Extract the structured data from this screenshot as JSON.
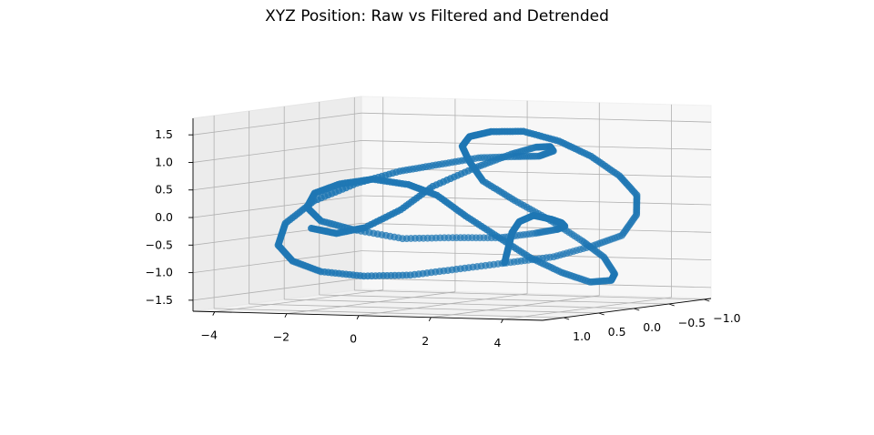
{
  "chart_data": {
    "type": "scatter",
    "projection": "3d",
    "title": "XYZ Position: Raw vs Filtered and Detrended",
    "xlabel": "",
    "ylabel": "",
    "zlabel": "",
    "xlim": [
      -4.6,
      5.1
    ],
    "ylim": [
      -1.1,
      1.3
    ],
    "zlim": [
      -1.7,
      1.8
    ],
    "x_ticks": [
      "−4",
      "−2",
      "0",
      "2",
      "4"
    ],
    "y_ticks": [
      "−1.0",
      "−0.5",
      "0.0",
      "0.5",
      "1.0"
    ],
    "z_ticks": [
      "−1.5",
      "−1.0",
      "−0.5",
      "0.0",
      "0.5",
      "1.0",
      "1.5"
    ],
    "grid": true,
    "marker_color": "#1f77b4",
    "series": [
      {
        "x": [
          -1.9,
          -1.4,
          -0.8,
          -0.2,
          0.3,
          0.9,
          1.3,
          1.6,
          1.8,
          1.7,
          1.3,
          0.8,
          0.2,
          -0.5,
          -1.2,
          -2.0,
          -2.8,
          -3.4,
          -3.6,
          -3.4,
          -2.8,
          -2.0,
          -1.1,
          -0.1,
          0.9,
          1.9,
          2.8,
          3.6,
          4.2,
          4.6,
          4.7,
          4.5,
          4.0,
          3.4,
          2.7,
          2.1,
          1.7,
          1.5,
          1.5,
          1.8,
          2.2,
          2.7,
          3.1,
          3.4,
          3.5,
          3.3,
          2.9,
          2.4,
          1.9,
          1.4,
          1.0,
          0.4,
          -0.4,
          -1.3,
          -2.2,
          -2.8,
          -3.0,
          -2.7,
          -1.9,
          -0.9,
          0.2,
          1.2,
          2.0,
          2.6,
          2.9,
          3.0,
          2.9,
          2.7,
          2.5,
          2.2,
          1.9
        ],
        "y": [
          1.0,
          0.9,
          0.8,
          0.6,
          0.4,
          0.1,
          -0.2,
          -0.4,
          -0.5,
          -0.6,
          -0.6,
          -0.5,
          -0.3,
          -0.1,
          0.1,
          0.3,
          0.5,
          0.6,
          0.6,
          0.5,
          0.4,
          0.2,
          0.0,
          -0.2,
          -0.4,
          -0.5,
          -0.6,
          -0.6,
          -0.5,
          -0.3,
          0.0,
          0.3,
          0.5,
          0.7,
          0.8,
          0.8,
          0.7,
          0.5,
          0.3,
          0.0,
          -0.3,
          -0.5,
          -0.6,
          -0.6,
          -0.5,
          -0.3,
          -0.1,
          0.1,
          0.3,
          0.5,
          0.7,
          0.8,
          0.9,
          0.9,
          0.8,
          0.6,
          0.3,
          0.0,
          -0.3,
          -0.5,
          -0.6,
          -0.6,
          -0.5,
          -0.3,
          -0.1,
          0.1,
          0.3,
          0.4,
          0.4,
          0.3,
          0.2
        ],
        "z": [
          -0.2,
          -0.3,
          -0.2,
          0.1,
          0.5,
          0.8,
          1.0,
          1.1,
          1.1,
          1.0,
          0.9,
          0.9,
          0.9,
          0.8,
          0.7,
          0.5,
          0.2,
          -0.2,
          -0.6,
          -0.9,
          -1.1,
          -1.2,
          -1.2,
          -1.1,
          -1.0,
          -0.9,
          -0.7,
          -0.5,
          -0.1,
          0.3,
          0.7,
          1.1,
          1.4,
          1.6,
          1.6,
          1.5,
          1.3,
          1.0,
          0.6,
          0.2,
          -0.2,
          -0.6,
          -0.9,
          -1.2,
          -1.3,
          -1.3,
          -1.1,
          -0.8,
          -0.4,
          0.0,
          0.4,
          0.6,
          0.7,
          0.6,
          0.4,
          0.1,
          -0.2,
          -0.4,
          -0.6,
          -0.6,
          -0.6,
          -0.5,
          -0.4,
          -0.3,
          -0.2,
          -0.1,
          0.0,
          -0.1,
          -0.3,
          -0.6,
          -0.9
        ]
      }
    ]
  }
}
